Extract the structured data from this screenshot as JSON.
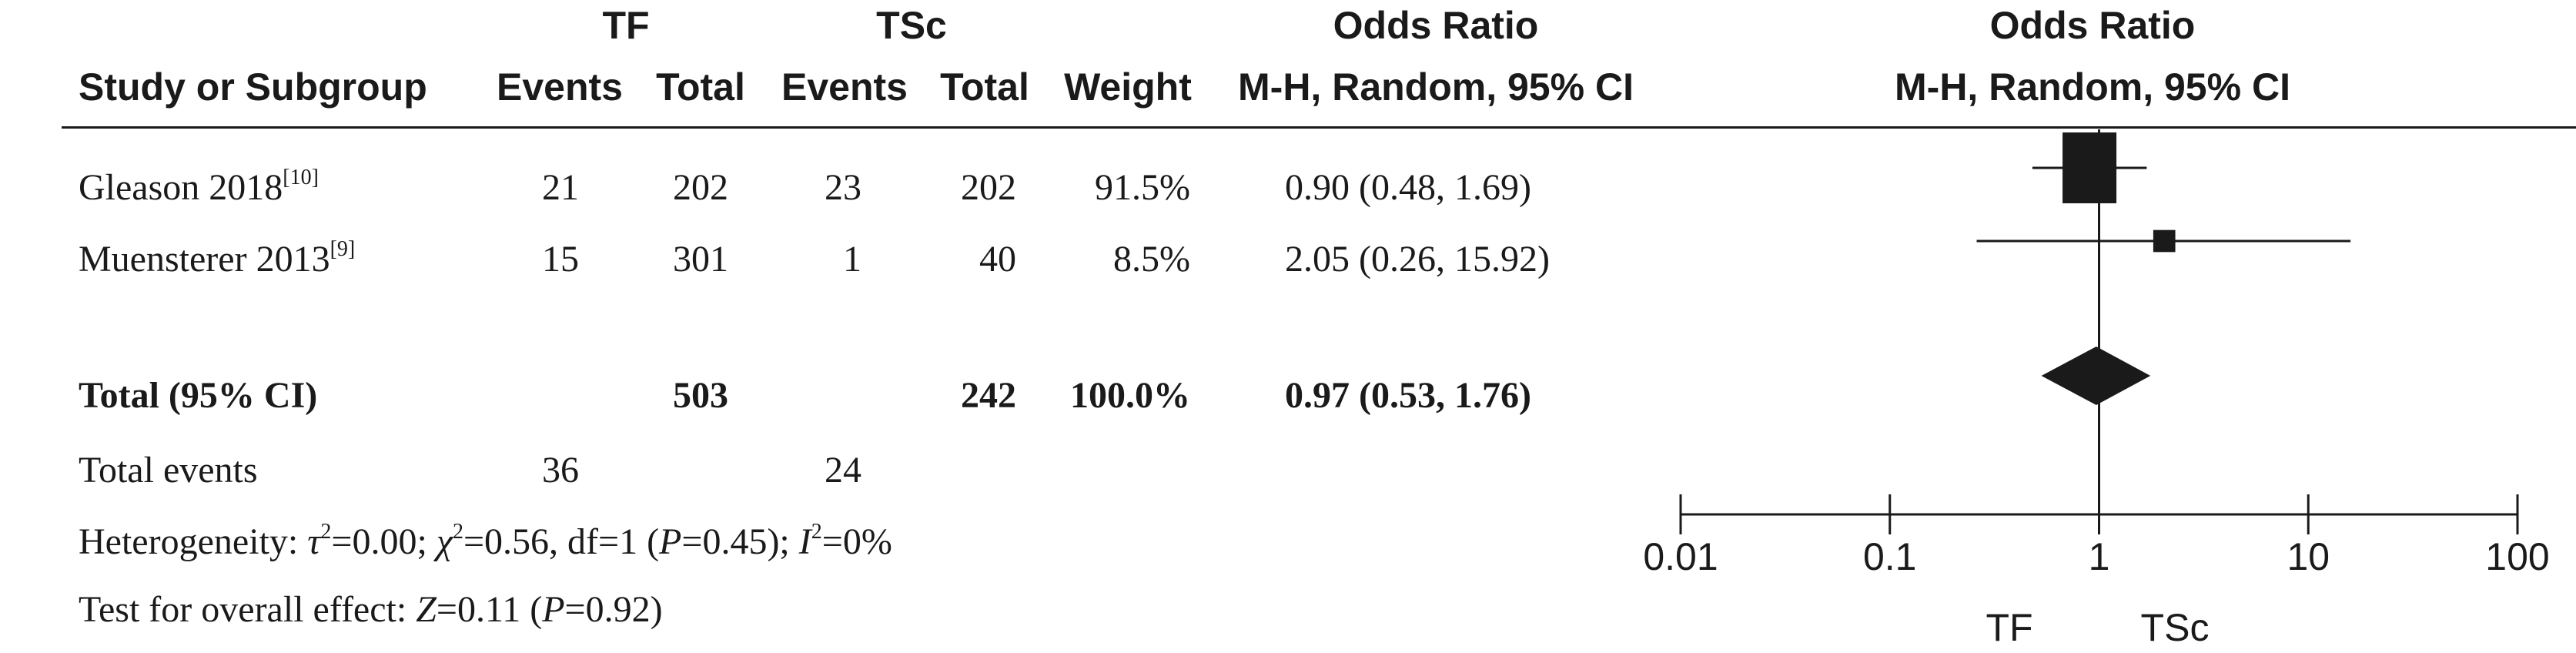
{
  "headers": {
    "group1": "TF",
    "group2": "TSc",
    "odds_ratio_left": "Odds Ratio",
    "odds_ratio_right": "Odds Ratio",
    "study_col": "Study or Subgroup",
    "events1": "Events",
    "total1": "Total",
    "events2": "Events",
    "total2": "Total",
    "weight": "Weight",
    "method_left": "M-H, Random, 95% CI",
    "method_right": "M-H, Random, 95% CI"
  },
  "rows": [
    {
      "study": "Gleason 2018",
      "ref": "[10]",
      "events1": "21",
      "total1": "202",
      "events2": "23",
      "total2": "202",
      "weight": "91.5%",
      "ci_text": "0.90 (0.48, 1.69)"
    },
    {
      "study": "Muensterer 2013",
      "ref": "[9]",
      "events1": "15",
      "total1": "301",
      "events2": "1",
      "total2": "40",
      "weight": "8.5%",
      "ci_text": "2.05 (0.26, 15.92)"
    }
  ],
  "total_row": {
    "label": "Total (95% CI)",
    "total1": "503",
    "total2": "242",
    "weight": "100.0%",
    "ci_text": "0.97 (0.53, 1.76)"
  },
  "total_events": {
    "label": "Total events",
    "events1": "36",
    "events2": "24"
  },
  "heterogeneity": {
    "prefix": "Heterogeneity: ",
    "tau_sym": "τ",
    "tau_sup": "2",
    "tau_val": "=0.00; ",
    "chi_sym": "χ",
    "chi_sup": "2",
    "chi_val": "=0.56, df=1 (",
    "p_sym": "P",
    "p_val": "=0.45); ",
    "i_sym": "I",
    "i_sup": "2",
    "i_val": "=0%"
  },
  "overall_effect": {
    "prefix": "Test for overall effect: ",
    "z_sym": "Z",
    "z_val": "=0.11 (",
    "p_sym": "P",
    "p_val": "=0.92)"
  },
  "chart_data": {
    "type": "forest",
    "scale": "log",
    "xlim": [
      0.01,
      100
    ],
    "ticks": [
      {
        "value": 0.01,
        "label": "0.01"
      },
      {
        "value": 0.1,
        "label": "0.1"
      },
      {
        "value": 1,
        "label": "1"
      },
      {
        "value": 10,
        "label": "10"
      },
      {
        "value": 100,
        "label": "100"
      }
    ],
    "favours_left": "TF",
    "favours_right": "TSc",
    "studies": [
      {
        "name": "Gleason 2018",
        "or": 0.9,
        "lower": 0.48,
        "upper": 1.69,
        "weight": 91.5
      },
      {
        "name": "Muensterer 2013",
        "or": 2.05,
        "lower": 0.26,
        "upper": 15.92,
        "weight": 8.5
      }
    ],
    "pooled": {
      "or": 0.97,
      "lower": 0.53,
      "upper": 1.76
    }
  }
}
